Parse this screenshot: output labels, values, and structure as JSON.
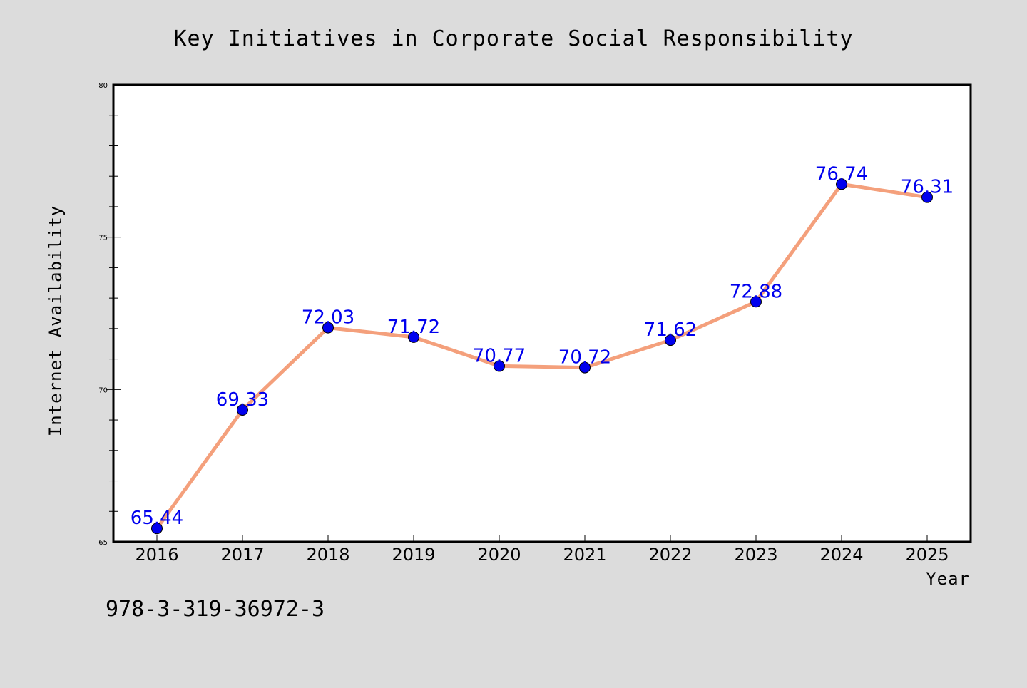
{
  "chart_data": {
    "type": "line",
    "title": "Key Initiatives in Corporate Social Responsibility",
    "xlabel": "Year",
    "ylabel": "Internet Availability",
    "categories": [
      "2016",
      "2017",
      "2018",
      "2019",
      "2020",
      "2021",
      "2022",
      "2023",
      "2024",
      "2025"
    ],
    "series": [
      {
        "values": [
          65.44,
          69.33,
          72.03,
          71.72,
          70.77,
          70.72,
          71.62,
          72.88,
          76.74,
          76.31
        ]
      }
    ],
    "data_labels": [
      "65.44",
      "69.33",
      "72.03",
      "71.72",
      "70.77",
      "70.72",
      "71.62",
      "72.88",
      "76.74",
      "76.31"
    ],
    "ylim": [
      65,
      80
    ],
    "y_ticks": [
      "65",
      "70",
      "75",
      "80"
    ],
    "grid": false,
    "legend": "none",
    "colors": {
      "line": "#f4a07c",
      "marker": "#0000ee",
      "label": "#0000ee",
      "background": "#dcdcdc",
      "plot_area": "#ffffff"
    }
  },
  "annotation": {
    "text": "978-3-319-36972-3"
  }
}
